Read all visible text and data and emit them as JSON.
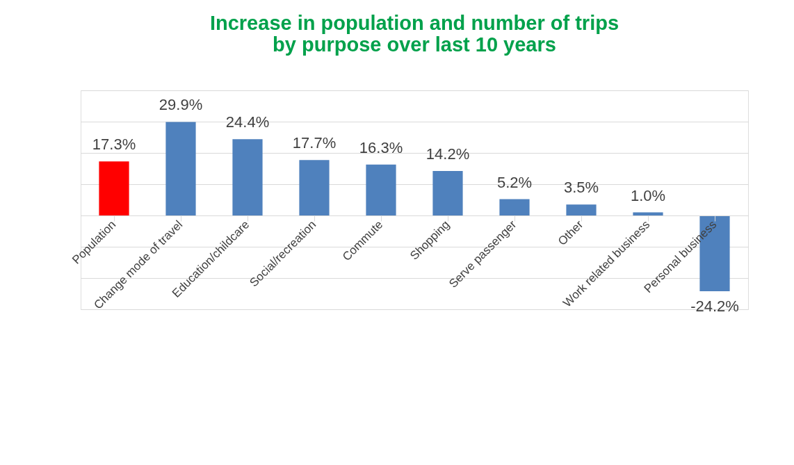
{
  "chart_data": {
    "type": "bar",
    "title": "Increase in population and number of trips by purpose over last 10 years",
    "categories": [
      "Population",
      "Change mode of travel",
      "Education/childcare",
      "Social/recreation",
      "Commute",
      "Shopping",
      "Serve passenger",
      "Other",
      "Work related business",
      "Personal business"
    ],
    "values": [
      17.3,
      29.9,
      24.4,
      17.7,
      16.3,
      14.2,
      5.2,
      3.5,
      1.0,
      -24.2
    ],
    "value_labels": [
      "17.3%",
      "29.9%",
      "24.4%",
      "17.7%",
      "16.3%",
      "14.2%",
      "5.2%",
      "3.5%",
      "1.0%",
      "-24.2%"
    ],
    "colors": [
      "#ff0000",
      "#4f81bd",
      "#4f81bd",
      "#4f81bd",
      "#4f81bd",
      "#4f81bd",
      "#4f81bd",
      "#4f81bd",
      "#4f81bd",
      "#4f81bd"
    ],
    "ylim": [
      -30,
      40
    ],
    "yticks": [
      {
        "value": -30,
        "label": null
      },
      {
        "value": -20,
        "label": null
      },
      {
        "value": -10,
        "label": null
      },
      {
        "value": 0,
        "label": null
      },
      {
        "value": 10,
        "label": null
      },
      {
        "value": 20,
        "label": null
      },
      {
        "value": 30,
        "label": null
      },
      {
        "value": 40,
        "label": null
      }
    ],
    "grid": "y",
    "tick_labels": "x"
  }
}
